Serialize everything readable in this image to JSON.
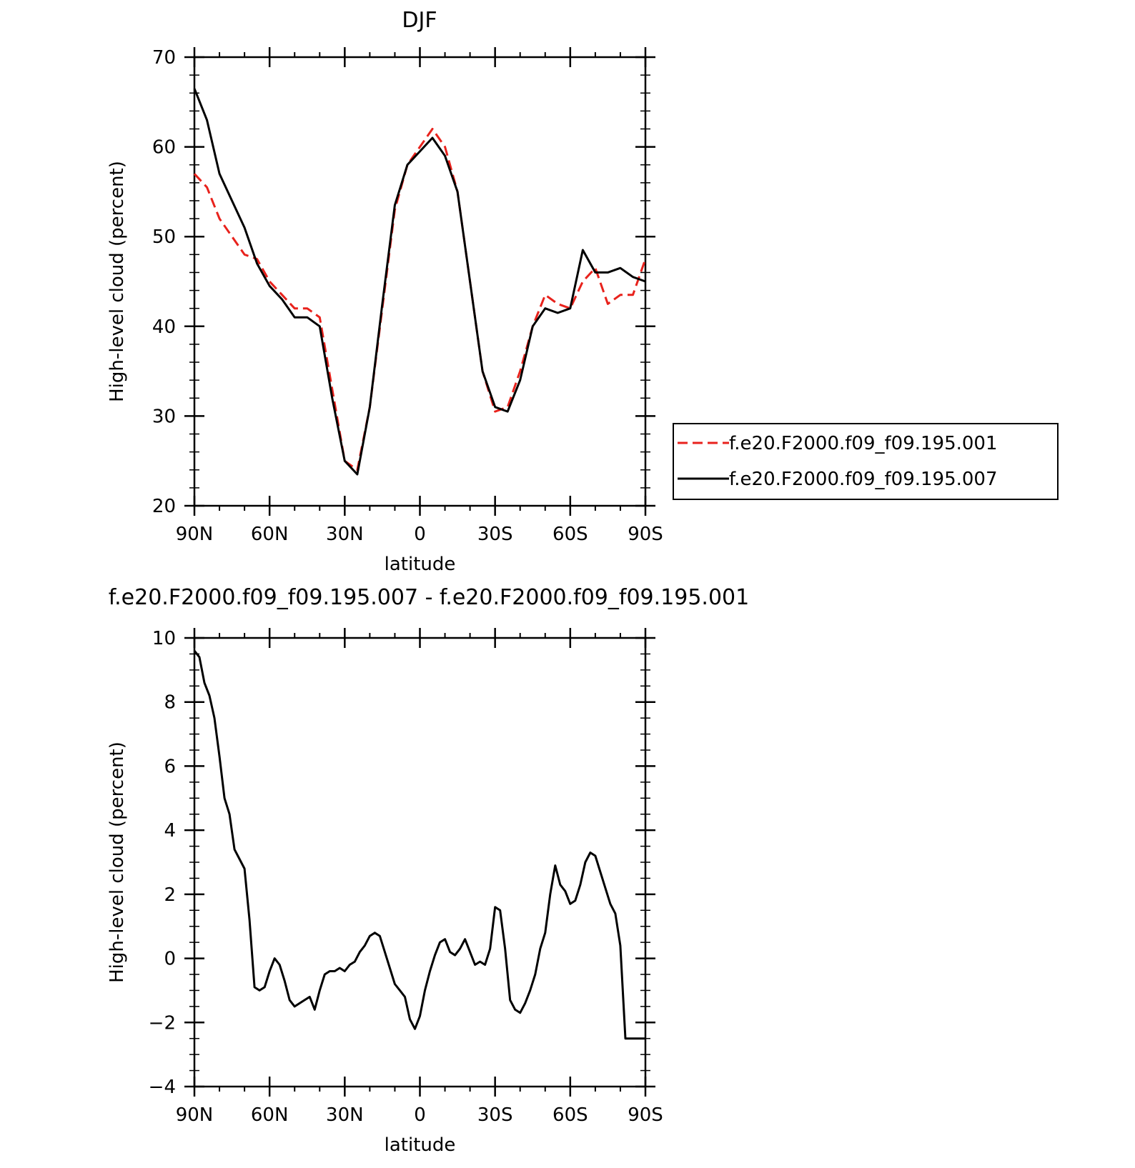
{
  "chart_data": [
    {
      "type": "line",
      "title": "DJF",
      "xlabel": "latitude",
      "ylabel": "High-level cloud (percent)",
      "xlim": [
        90,
        -90
      ],
      "ylim": [
        20,
        70
      ],
      "x_tick_values": [
        90,
        60,
        30,
        0,
        -30,
        -60,
        -90
      ],
      "x_tick_labels": [
        "90N",
        "60N",
        "30N",
        "0",
        "30S",
        "60S",
        "90S"
      ],
      "y_tick_values": [
        20,
        30,
        40,
        50,
        60,
        70
      ],
      "y_tick_labels": [
        "20",
        "30",
        "40",
        "50",
        "60",
        "70"
      ],
      "legend_position": "right",
      "x": [
        90,
        85,
        80,
        75,
        70,
        65,
        60,
        55,
        50,
        45,
        40,
        35,
        30,
        25,
        20,
        15,
        10,
        5,
        0,
        -5,
        -10,
        -15,
        -20,
        -25,
        -30,
        -35,
        -40,
        -45,
        -50,
        -55,
        -60,
        -65,
        -70,
        -75,
        -80,
        -85,
        -90
      ],
      "series": [
        {
          "name": "f.e20.F2000.f09_f09.195.001",
          "color": "#e8221c",
          "dash": "dashed",
          "values": [
            57,
            55.5,
            52,
            50,
            48,
            47.5,
            45,
            43.5,
            42,
            42,
            41,
            33,
            25,
            24,
            31,
            42,
            53,
            58,
            60,
            62,
            60,
            55,
            45,
            35,
            30.5,
            31,
            35,
            40,
            43.5,
            42.5,
            42,
            45,
            46.5,
            42.5,
            43.5,
            43.5,
            47.5
          ]
        },
        {
          "name": "f.e20.F2000.f09_f09.195.007",
          "color": "#000000",
          "dash": "solid",
          "values": [
            66.5,
            63,
            57,
            54,
            51,
            47,
            44.5,
            43,
            41,
            41,
            40,
            32,
            25,
            23.5,
            31,
            42.5,
            53.5,
            58,
            59.5,
            61,
            59,
            55,
            45,
            35,
            31,
            30.5,
            34,
            40,
            42,
            41.5,
            42,
            48.5,
            46,
            46,
            46.5,
            45.5,
            45
          ]
        }
      ]
    },
    {
      "type": "line",
      "title": "f.e20.F2000.f09_f09.195.007 - f.e20.F2000.f09_f09.195.001",
      "xlabel": "latitude",
      "ylabel": "High-level cloud (percent)",
      "xlim": [
        90,
        -90
      ],
      "ylim": [
        -4,
        10
      ],
      "x_tick_values": [
        90,
        60,
        30,
        0,
        -30,
        -60,
        -90
      ],
      "x_tick_labels": [
        "90N",
        "60N",
        "30N",
        "0",
        "30S",
        "60S",
        "90S"
      ],
      "y_tick_values": [
        -4,
        -2,
        0,
        2,
        4,
        6,
        8,
        10
      ],
      "y_tick_labels": [
        "−4",
        "−2",
        "0",
        "2",
        "4",
        "6",
        "8",
        "10"
      ],
      "x": [
        90,
        88,
        86,
        84,
        82,
        80,
        78,
        76,
        74,
        72,
        70,
        68,
        66,
        64,
        62,
        60,
        58,
        56,
        54,
        52,
        50,
        48,
        46,
        44,
        42,
        40,
        38,
        36,
        34,
        32,
        30,
        28,
        26,
        24,
        22,
        20,
        18,
        16,
        14,
        12,
        10,
        8,
        6,
        4,
        2,
        0,
        -2,
        -4,
        -6,
        -8,
        -10,
        -12,
        -14,
        -16,
        -18,
        -20,
        -22,
        -24,
        -26,
        -28,
        -30,
        -32,
        -34,
        -36,
        -38,
        -40,
        -42,
        -44,
        -46,
        -48,
        -50,
        -52,
        -54,
        -56,
        -58,
        -60,
        -62,
        -64,
        -66,
        -68,
        -70,
        -72,
        -74,
        -76,
        -78,
        -80,
        -82,
        -84,
        -86,
        -88,
        -90
      ],
      "series": [
        {
          "name": "",
          "color": "#000000",
          "dash": "solid",
          "values": [
            9.6,
            9.4,
            8.6,
            8.2,
            7.5,
            6.3,
            5.0,
            4.5,
            3.4,
            3.1,
            2.8,
            1.2,
            -0.9,
            -1.0,
            -0.9,
            -0.4,
            0.0,
            -0.2,
            -0.7,
            -1.3,
            -1.5,
            -1.4,
            -1.3,
            -1.2,
            -1.6,
            -1.0,
            -0.5,
            -0.4,
            -0.4,
            -0.3,
            -0.4,
            -0.2,
            -0.1,
            0.2,
            0.4,
            0.7,
            0.8,
            0.7,
            0.2,
            -0.3,
            -0.8,
            -1.0,
            -1.2,
            -1.9,
            -2.2,
            -1.8,
            -1.0,
            -0.4,
            0.1,
            0.5,
            0.6,
            0.2,
            0.1,
            0.3,
            0.6,
            0.2,
            -0.2,
            -0.1,
            -0.2,
            0.3,
            1.6,
            1.5,
            0.3,
            -1.3,
            -1.6,
            -1.7,
            -1.4,
            -1.0,
            -0.5,
            0.3,
            0.8,
            2.0,
            2.9,
            2.3,
            2.1,
            1.7,
            1.8,
            2.3,
            3.0,
            3.3,
            3.2,
            2.7,
            2.2,
            1.7,
            1.4,
            0.4,
            -2.5,
            -2.5,
            -2.5,
            -2.5,
            -2.5
          ]
        }
      ]
    }
  ]
}
